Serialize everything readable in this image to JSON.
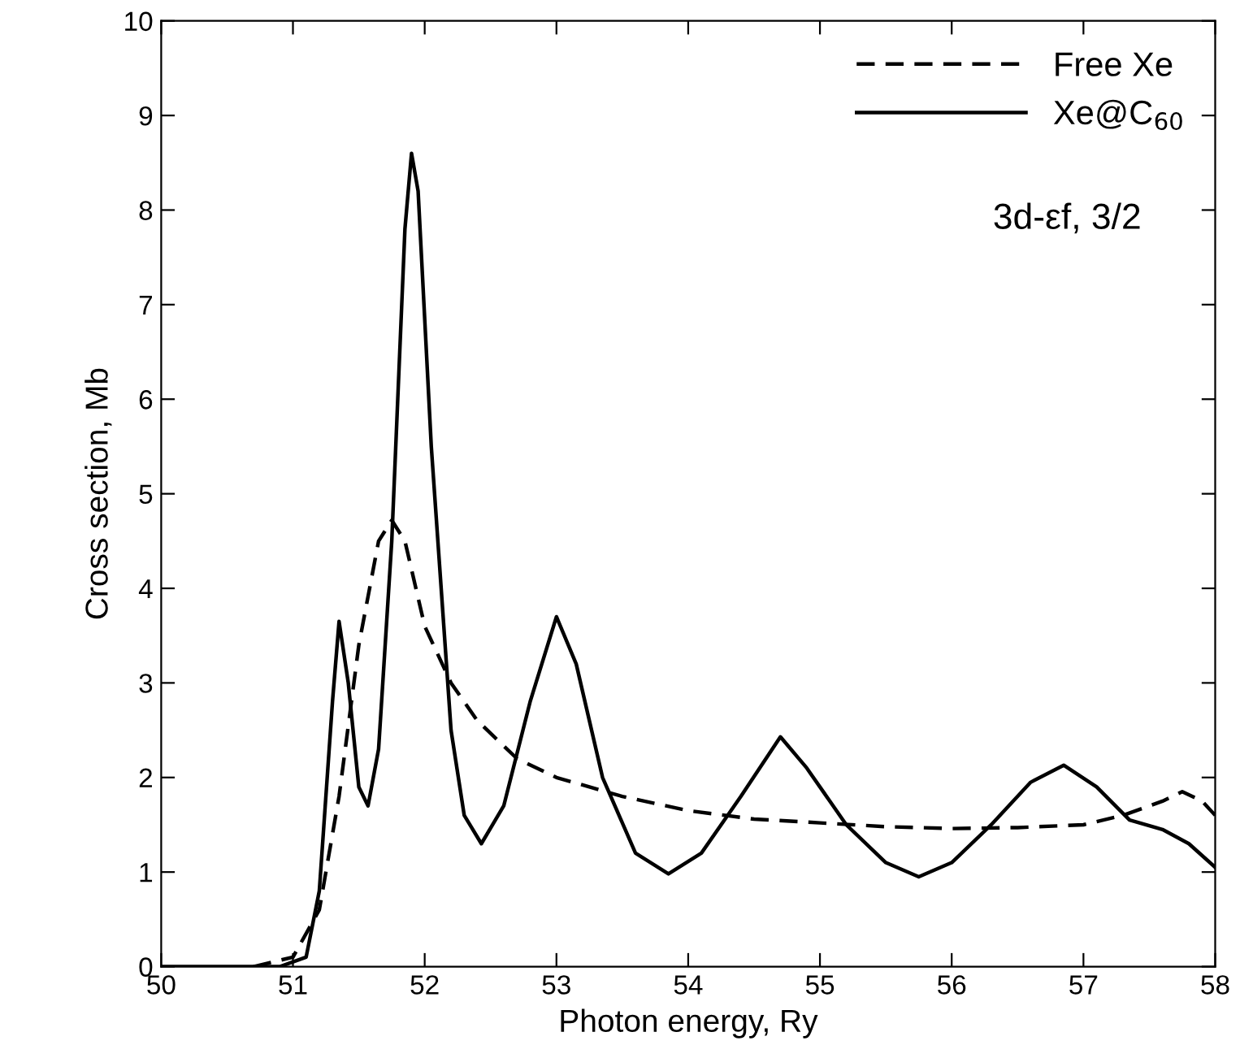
{
  "chart_data": {
    "type": "line",
    "xlabel": "Photon energy, Ry",
    "ylabel": "Cross section, Mb",
    "xlim": [
      50,
      58
    ],
    "xticks": [
      50,
      51,
      52,
      53,
      54,
      55,
      56,
      57,
      58
    ],
    "ylim": [
      0,
      10
    ],
    "yticks": [
      0,
      1,
      2,
      3,
      4,
      5,
      6,
      7,
      8,
      9,
      10
    ],
    "grid": false,
    "legend": "top right",
    "marker": "none",
    "annotations": [
      {
        "text": "3d-εf, 3/2"
      }
    ],
    "series": [
      {
        "name": "Free Xe",
        "color": "#000000",
        "line_style": "dashed",
        "x": [
          50.7,
          51.0,
          51.2,
          51.35,
          51.5,
          51.65,
          51.75,
          51.85,
          52.0,
          52.2,
          52.4,
          52.7,
          53.0,
          53.5,
          54.0,
          54.5,
          55.0,
          55.5,
          56.0,
          56.5,
          57.0,
          57.3,
          57.6,
          57.75,
          57.9,
          58.0
        ],
        "values": [
          0,
          0.1,
          0.6,
          1.8,
          3.4,
          4.5,
          4.72,
          4.5,
          3.6,
          3.0,
          2.6,
          2.2,
          2.0,
          1.8,
          1.65,
          1.56,
          1.52,
          1.48,
          1.46,
          1.47,
          1.5,
          1.6,
          1.75,
          1.85,
          1.75,
          1.6
        ]
      },
      {
        "name": "Xe@C$_{60}$",
        "color": "#000000",
        "line_style": "solid",
        "x": [
          50.0,
          50.9,
          51.1,
          51.2,
          51.3,
          51.35,
          51.42,
          51.5,
          51.57,
          51.65,
          51.75,
          51.85,
          51.9,
          51.95,
          52.05,
          52.2,
          52.3,
          52.43,
          52.6,
          52.8,
          53.0,
          53.15,
          53.35,
          53.6,
          53.85,
          54.1,
          54.4,
          54.7,
          54.9,
          55.2,
          55.5,
          55.75,
          56.0,
          56.3,
          56.6,
          56.85,
          57.1,
          57.35,
          57.6,
          57.8,
          58.0
        ],
        "values": [
          0,
          0,
          0.1,
          0.8,
          2.8,
          3.65,
          3.0,
          1.9,
          1.7,
          2.3,
          4.5,
          7.8,
          8.6,
          8.2,
          5.5,
          2.5,
          1.6,
          1.3,
          1.7,
          2.8,
          3.7,
          3.2,
          2.0,
          1.2,
          0.98,
          1.2,
          1.8,
          2.43,
          2.1,
          1.5,
          1.1,
          0.95,
          1.1,
          1.5,
          1.95,
          2.13,
          1.9,
          1.55,
          1.45,
          1.3,
          1.05
        ]
      }
    ]
  }
}
